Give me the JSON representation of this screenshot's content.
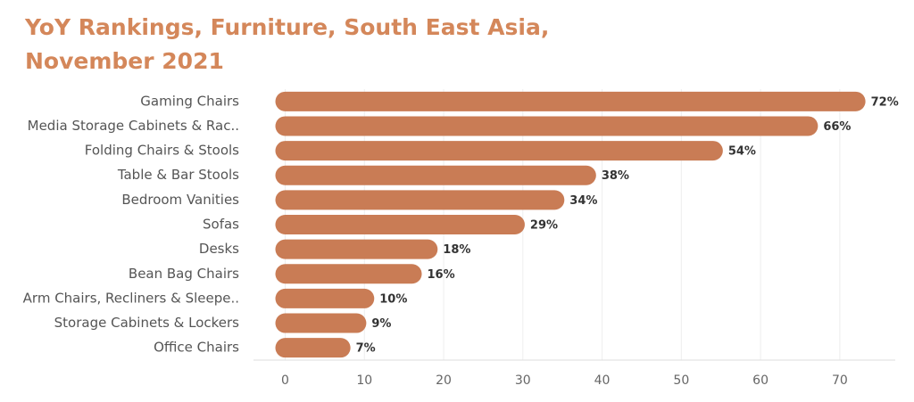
{
  "chart_data": {
    "type": "hbar",
    "title": [
      "YoY Rankings, Furniture, South East Asia,",
      "November 2021"
    ],
    "categories": [
      "Gaming Chairs",
      "Media Storage Cabinets & Rac..",
      "Folding Chairs & Stools",
      "Table & Bar Stools",
      "Bedroom Vanities",
      "Sofas",
      "Desks",
      "Bean Bag Chairs",
      "Arm Chairs, Recliners & Sleepe..",
      "Storage Cabinets & Lockers",
      "Office Chairs"
    ],
    "values": [
      72,
      66,
      54,
      38,
      34,
      29,
      18,
      16,
      10,
      9,
      7
    ],
    "value_labels": [
      "72%",
      "66%",
      "54%",
      "38%",
      "34%",
      "29%",
      "18%",
      "16%",
      "10%",
      "9%",
      "7%"
    ],
    "color": "#c97c55",
    "xlim": [
      -4,
      77
    ],
    "xticks": [
      0,
      10,
      20,
      30,
      40,
      50,
      60,
      70
    ],
    "grid": true
  }
}
